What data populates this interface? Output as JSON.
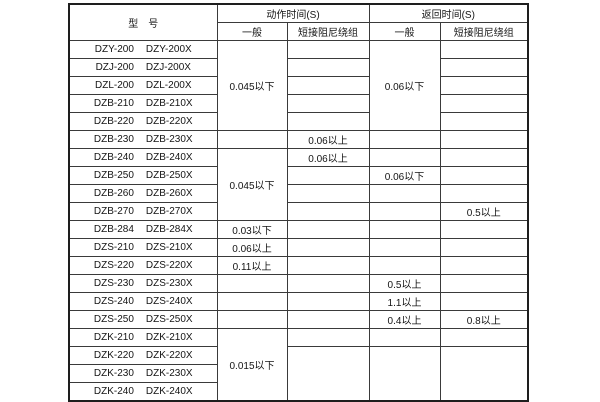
{
  "header": {
    "model": "型　号",
    "action_time": "动作时间(S)",
    "return_time": "返回时间(S)",
    "general": "一般",
    "damping": "短接阻尼绕组"
  },
  "rows": [
    {
      "m1": "DZY-200",
      "m2": "DZY-200X",
      "ag": "0.045以下",
      "rg": "0.06以下"
    },
    {
      "m1": "DZJ-200",
      "m2": "DZJ-200X"
    },
    {
      "m1": "DZL-200",
      "m2": "DZL-200X"
    },
    {
      "m1": "DZB-210",
      "m2": "DZB-210X"
    },
    {
      "m1": "DZB-220",
      "m2": "DZB-220X"
    },
    {
      "m1": "DZB-230",
      "m2": "DZB-230X",
      "ad": "0.06以上"
    },
    {
      "m1": "DZB-240",
      "m2": "DZB-240X",
      "ag": "0.045以下",
      "ad": "0.06以上"
    },
    {
      "m1": "DZB-250",
      "m2": "DZB-250X",
      "rg": "0.06以下"
    },
    {
      "m1": "DZB-260",
      "m2": "DZB-260X"
    },
    {
      "m1": "DZB-270",
      "m2": "DZB-270X",
      "rd": "0.5以上"
    },
    {
      "m1": "DZB-284",
      "m2": "DZB-284X",
      "ag": "0.03以下"
    },
    {
      "m1": "DZS-210",
      "m2": "DZS-210X",
      "ag": "0.06以上"
    },
    {
      "m1": "DZS-220",
      "m2": "DZS-220X",
      "ag": "0.11以上"
    },
    {
      "m1": "DZS-230",
      "m2": "DZS-230X",
      "rg": "0.5以上"
    },
    {
      "m1": "DZS-240",
      "m2": "DZS-240X",
      "rg": "1.1以上"
    },
    {
      "m1": "DZS-250",
      "m2": "DZS-250X",
      "rg": "0.4以上",
      "rd": "0.8以上"
    },
    {
      "m1": "DZK-210",
      "m2": "DZK-210X",
      "ag": "0.015以下"
    },
    {
      "m1": "DZK-220",
      "m2": "DZK-220X"
    },
    {
      "m1": "DZK-230",
      "m2": "DZK-230X"
    },
    {
      "m1": "DZK-240",
      "m2": "DZK-240X"
    }
  ]
}
